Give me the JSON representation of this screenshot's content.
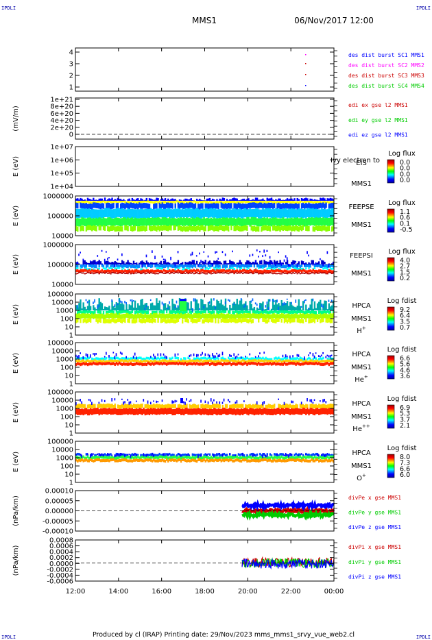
{
  "header": {
    "corner_left": "IPDLI",
    "corner_right": "IPDLI",
    "mission": "MMS1",
    "datetime": "06/Nov/2017 12:00"
  },
  "footer": {
    "corner_left": "IPDLI",
    "corner_right": "IPDLI",
    "text": "Produced by cl (IRAP)   Printing date: 29/Nov/2023   mms_mms1_srvy_vue_web2.cl"
  },
  "time_axis": [
    "12:00",
    "14:00",
    "16:00",
    "18:00",
    "20:00",
    "22:00",
    "00:00"
  ],
  "colors": {
    "red": "#ff0000",
    "green": "#00cc00",
    "blue": "#0000ff",
    "magenta": "#ff00ff",
    "darkred": "#cc0000"
  },
  "chart_data": [
    {
      "type": "scatter",
      "ylim": [
        0.5,
        4.5
      ],
      "yticks": [
        "1",
        "2",
        "3",
        "4"
      ],
      "legend": [
        {
          "text": "des dist burst SC1 MMS1",
          "color": "#0000ff"
        },
        {
          "text": "des dist burst SC2 MMS2",
          "color": "#ff00ff"
        },
        {
          "text": "des dist burst SC3 MMS3",
          "color": "#cc0000"
        },
        {
          "text": "des dist burst SC4 MMS4",
          "color": "#00cc00"
        }
      ]
    },
    {
      "type": "line",
      "ylabel": "(mV/m)",
      "yticks": [
        "1e+21",
        "8e+20",
        "6e+20",
        "4e+20",
        "2e+20",
        "0"
      ],
      "legend": [
        {
          "text": "edi ex gse l2 MMS1",
          "color": "#cc0000"
        },
        {
          "text": "edi ey gse l2 MMS1",
          "color": "#00cc00"
        },
        {
          "text": "edi ez gse l2 MMS1",
          "color": "#0000ff"
        }
      ]
    },
    {
      "type": "heatmap",
      "ylabel": "E (eV)",
      "yticks": [
        "1e+07",
        "1e+06",
        "1e+05",
        "1e+04"
      ],
      "instrument": [
        "EIS",
        "MMS1"
      ],
      "overlay_text": "Ivy electron to",
      "colorbar_title": "Log flux",
      "colorbar_ticks": [
        "0.0",
        "0.0",
        "0.0",
        "0.0"
      ]
    },
    {
      "type": "heatmap",
      "ylabel": "E (eV)",
      "yticks": [
        "1000000",
        "100000",
        "10000"
      ],
      "instrument": [
        "FEEPSE",
        "MMS1"
      ],
      "colorbar_title": "Log flux",
      "colorbar_ticks": [
        "1.1",
        "0.6",
        "0.1",
        "-0.5"
      ]
    },
    {
      "type": "heatmap",
      "ylabel": "E (eV)",
      "yticks": [
        "1000000",
        "100000",
        "10000"
      ],
      "instrument": [
        "FEEPSI",
        "MMS1"
      ],
      "colorbar_title": "Log flux",
      "colorbar_ticks": [
        "4.0",
        "2.7",
        "1.5",
        "0.2"
      ]
    },
    {
      "type": "heatmap",
      "ylabel": "E (eV)",
      "yticks": [
        "100000",
        "10000",
        "1000",
        "100",
        "10",
        "1"
      ],
      "instrument": [
        "HPCA",
        "MMS1",
        "H+"
      ],
      "colorbar_title": "Log fdist",
      "colorbar_ticks": [
        "9.2",
        "6.4",
        "3.5",
        "0.7"
      ]
    },
    {
      "type": "heatmap",
      "ylabel": "E (eV)",
      "yticks": [
        "100000",
        "10000",
        "1000",
        "100",
        "10",
        "1"
      ],
      "instrument": [
        "HPCA",
        "MMS1",
        "He+"
      ],
      "colorbar_title": "Log fdist",
      "colorbar_ticks": [
        "6.6",
        "5.6",
        "4.6",
        "3.6"
      ]
    },
    {
      "type": "heatmap",
      "ylabel": "E (eV)",
      "yticks": [
        "100000",
        "10000",
        "1000",
        "100",
        "10",
        "1"
      ],
      "instrument": [
        "HPCA",
        "MMS1",
        "He++"
      ],
      "colorbar_title": "Log fdist",
      "colorbar_ticks": [
        "6.9",
        "5.3",
        "3.7",
        "2.1"
      ]
    },
    {
      "type": "heatmap",
      "ylabel": "E (eV)",
      "yticks": [
        "100000",
        "10000",
        "1000",
        "100",
        "10",
        "1"
      ],
      "instrument": [
        "HPCA",
        "MMS1",
        "O+"
      ],
      "colorbar_title": "Log fdist",
      "colorbar_ticks": [
        "8.0",
        "7.3",
        "6.6",
        "6.0"
      ]
    },
    {
      "type": "line",
      "ylabel": "(nPa/km)",
      "yticks": [
        "0.00010",
        "0.00005",
        "0.00000",
        "-0.00005",
        "-0.00010"
      ],
      "ylim": [
        -0.00015,
        0.00015
      ],
      "legend": [
        {
          "text": "divPe x gse MMS1",
          "color": "#cc0000"
        },
        {
          "text": "divPe y gse MMS1",
          "color": "#00cc00"
        },
        {
          "text": "divPe z gse MMS1",
          "color": "#0000ff"
        }
      ]
    },
    {
      "type": "line",
      "ylabel": "(nPa/km)",
      "yticks": [
        "0.0008",
        "0.0006",
        "0.0004",
        "0.0002",
        "0.0000",
        "-0.0002",
        "-0.0004",
        "-0.0006"
      ],
      "ylim": [
        -0.0007,
        0.0009
      ],
      "legend": [
        {
          "text": "divPi x gse MMS1",
          "color": "#cc0000"
        },
        {
          "text": "divPi y gse MMS1",
          "color": "#00cc00"
        },
        {
          "text": "divPi z gse MMS1",
          "color": "#0000ff"
        }
      ]
    }
  ]
}
